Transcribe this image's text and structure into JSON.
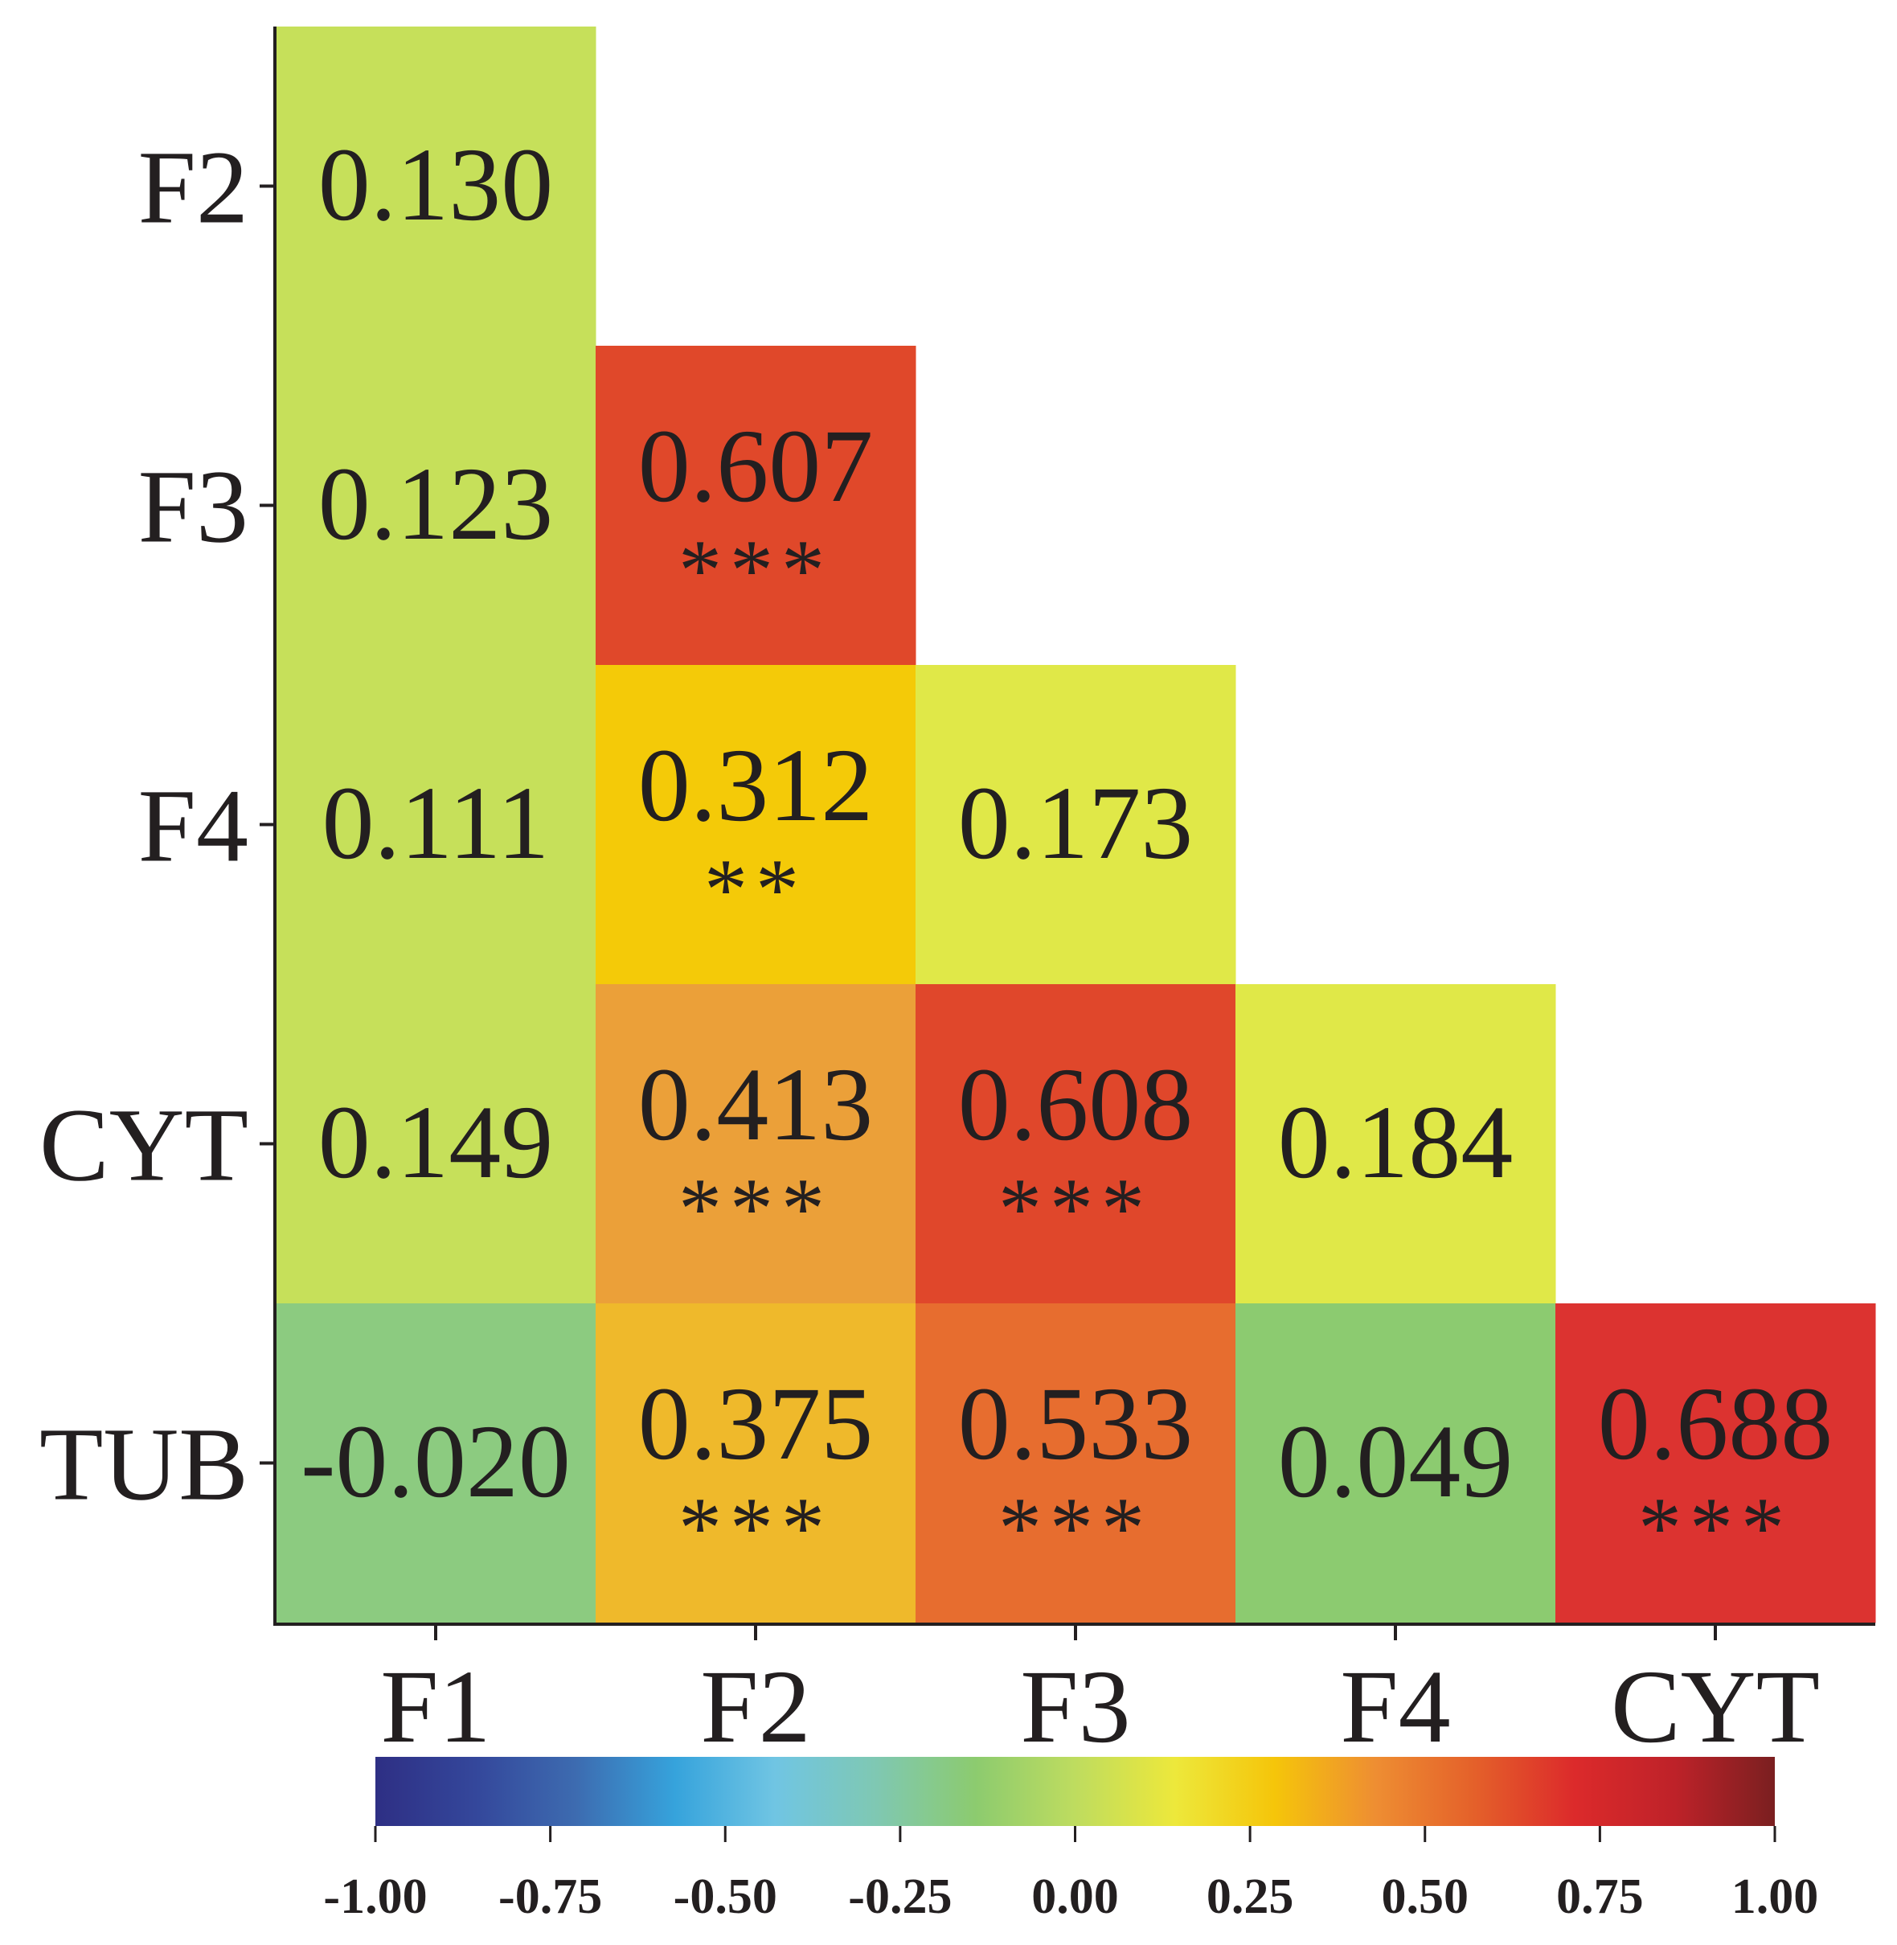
{
  "chart_data": {
    "type": "heatmap",
    "title": "",
    "xlabel": "",
    "ylabel": "",
    "x_categories": [
      "F1",
      "F2",
      "F3",
      "F4",
      "CYT"
    ],
    "y_categories": [
      "F2",
      "F3",
      "F4",
      "CYT",
      "TUB"
    ],
    "cells": [
      {
        "x": "F1",
        "y": "F2",
        "value": 0.13,
        "label": "0.130",
        "sig": ""
      },
      {
        "x": "F1",
        "y": "F3",
        "value": 0.123,
        "label": "0.123",
        "sig": ""
      },
      {
        "x": "F1",
        "y": "F4",
        "value": 0.111,
        "label": "0.111",
        "sig": ""
      },
      {
        "x": "F1",
        "y": "CYT",
        "value": 0.149,
        "label": "0.149",
        "sig": ""
      },
      {
        "x": "F1",
        "y": "TUB",
        "value": -0.02,
        "label": "-0.020",
        "sig": ""
      },
      {
        "x": "F2",
        "y": "F3",
        "value": 0.607,
        "label": "0.607",
        "sig": "***"
      },
      {
        "x": "F2",
        "y": "F4",
        "value": 0.312,
        "label": "0.312",
        "sig": "**"
      },
      {
        "x": "F2",
        "y": "CYT",
        "value": 0.413,
        "label": "0.413",
        "sig": "***"
      },
      {
        "x": "F2",
        "y": "TUB",
        "value": 0.375,
        "label": "0.375",
        "sig": "***"
      },
      {
        "x": "F3",
        "y": "F4",
        "value": 0.173,
        "label": "0.173",
        "sig": ""
      },
      {
        "x": "F3",
        "y": "CYT",
        "value": 0.608,
        "label": "0.608",
        "sig": "***"
      },
      {
        "x": "F3",
        "y": "TUB",
        "value": 0.533,
        "label": "0.533",
        "sig": "***"
      },
      {
        "x": "F4",
        "y": "CYT",
        "value": 0.184,
        "label": "0.184",
        "sig": ""
      },
      {
        "x": "F4",
        "y": "TUB",
        "value": 0.049,
        "label": "0.049",
        "sig": ""
      },
      {
        "x": "CYT",
        "y": "TUB",
        "value": 0.688,
        "label": "0.688",
        "sig": "***"
      }
    ],
    "colorbar": {
      "range": [
        -1.0,
        1.0
      ],
      "ticks": [
        "-1.00",
        "-0.75",
        "-0.50",
        "-0.25",
        "0.00",
        "0.25",
        "0.50",
        "0.75",
        "1.00"
      ],
      "tick_values": [
        -1.0,
        -0.75,
        -0.5,
        -0.25,
        0.0,
        0.25,
        0.5,
        0.75,
        1.0
      ],
      "position": "bottom",
      "colors": [
        "#2e2f84",
        "#34479b",
        "#3d6bb0",
        "#36a3dc",
        "#70c5e3",
        "#7fc8b3",
        "#8ccb6f",
        "#bedc5f",
        "#ede83b",
        "#f5c50a",
        "#ee8e32",
        "#e4602a",
        "#dc2a2b",
        "#be2229",
        "#7a1f20"
      ]
    },
    "cell_colors": {
      "0.130": "#c6e05a",
      "0.123": "#c6e05a",
      "0.111": "#c6e05a",
      "0.149": "#c6e05a",
      "-0.020": "#8ccb80",
      "0.607": "#e0482a",
      "0.312": "#f4ca08",
      "0.413": "#eba039",
      "0.375": "#efb92b",
      "0.173": "#e0e848",
      "0.608": "#e0472b",
      "0.533": "#e76d2f",
      "0.184": "#e0e848",
      "0.049": "#8ccb70",
      "0.688": "#dc3330"
    },
    "grid": false,
    "legend": "bottom"
  }
}
